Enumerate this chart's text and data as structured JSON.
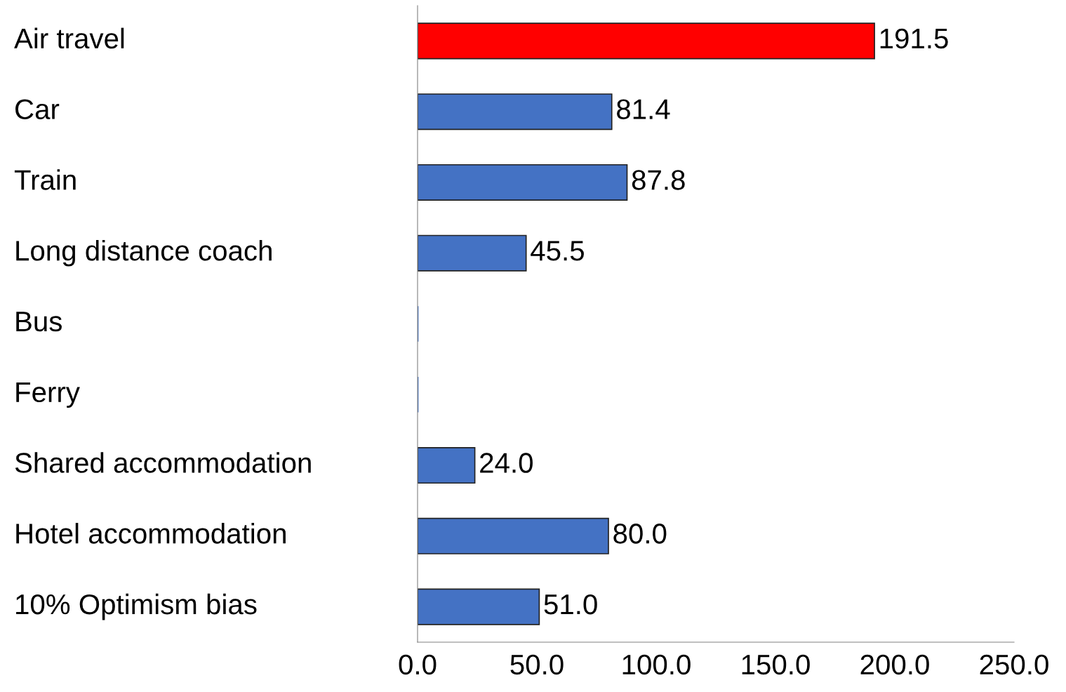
{
  "chart_data": {
    "type": "bar",
    "orientation": "horizontal",
    "categories": [
      "Air travel",
      "Car",
      "Train",
      "Long distance coach",
      "Bus",
      "Ferry",
      "Shared accommodation",
      "Hotel accommodation",
      "10% Optimism bias"
    ],
    "values": [
      191.5,
      81.4,
      87.8,
      45.5,
      0,
      0,
      24.0,
      80.0,
      51.0
    ],
    "colors": [
      "#ff0000",
      "#4472c4",
      "#4472c4",
      "#4472c4",
      "#4472c4",
      "#4472c4",
      "#4472c4",
      "#4472c4",
      "#4472c4"
    ],
    "value_labels": [
      "191.5",
      "81.4",
      "87.8",
      "45.5",
      null,
      null,
      "24.0",
      "80.0",
      "51.0"
    ],
    "xlim": [
      0,
      250
    ],
    "xticks": [
      {
        "value": 0,
        "label": "0.0"
      },
      {
        "value": 50,
        "label": "50.0"
      },
      {
        "value": 100,
        "label": "100.0"
      },
      {
        "value": 150,
        "label": "150.0"
      },
      {
        "value": 200,
        "label": "200.0"
      },
      {
        "value": 250,
        "label": "250.0"
      }
    ],
    "grid": false
  }
}
